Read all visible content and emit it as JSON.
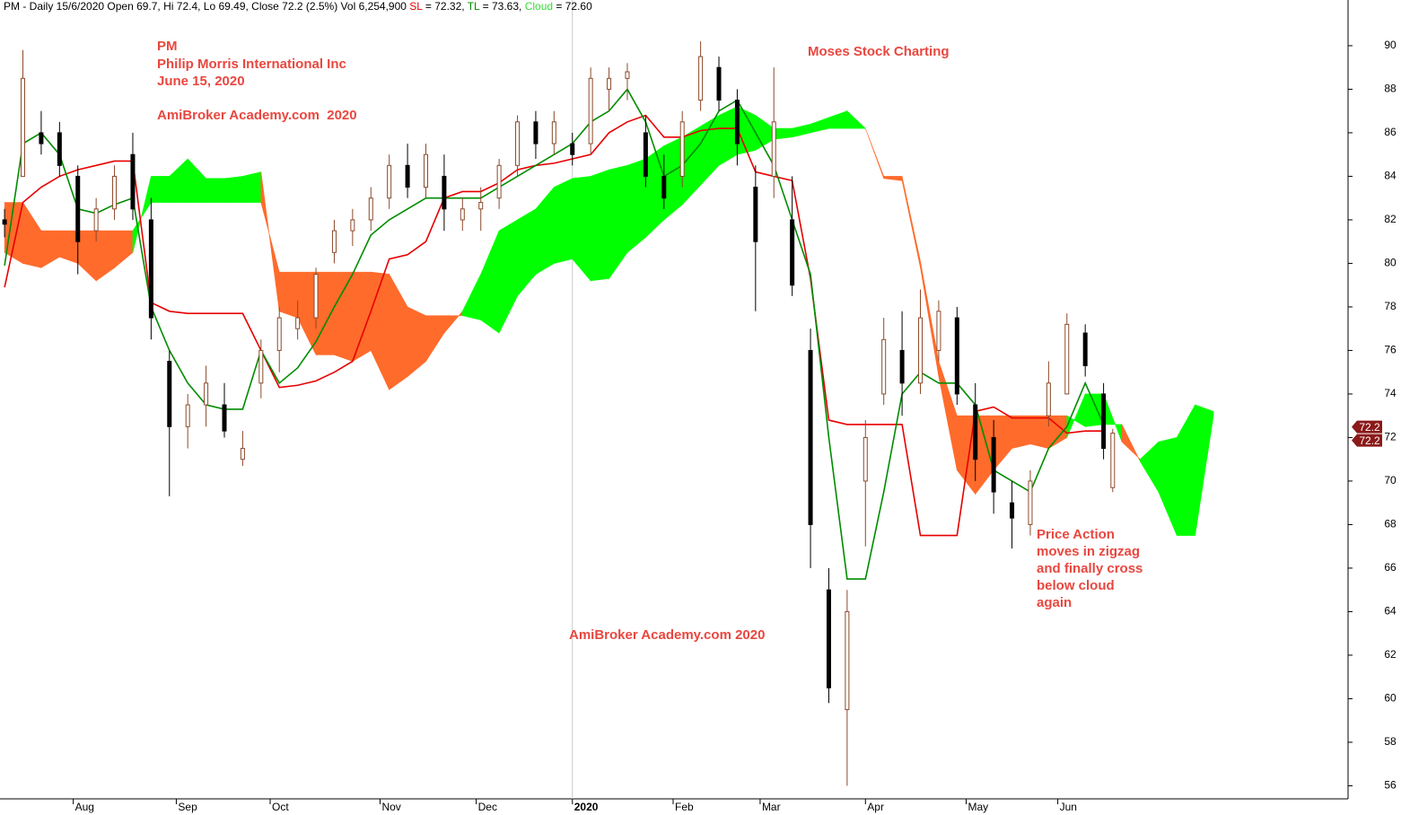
{
  "chart_data": {
    "type": "candlestick",
    "title": "PM - Daily 15/6/2020 Open 69.7, Hi 72.4, Lo 69.49, Close 72.2 (2.5%) Vol 6,254,900",
    "xlim": [
      -1,
      293
    ],
    "ylim": [
      55.4,
      92.1
    ],
    "yticks": [
      56,
      58,
      60,
      62,
      64,
      66,
      68,
      70,
      72,
      74,
      76,
      78,
      80,
      82,
      84,
      86,
      88,
      90
    ],
    "xticks": [
      {
        "value": 15,
        "label": "Aug"
      },
      {
        "value": 37.5,
        "label": "Sep"
      },
      {
        "value": 58,
        "label": "Oct"
      },
      {
        "value": 82,
        "label": "Nov"
      },
      {
        "value": 103,
        "label": "Dec"
      },
      {
        "value": 124,
        "label": "2020",
        "major": true
      },
      {
        "value": 146,
        "label": "Feb"
      },
      {
        "value": 165,
        "label": "Mar"
      },
      {
        "value": 188,
        "label": "Apr"
      },
      {
        "value": 210,
        "label": "May"
      },
      {
        "value": 230,
        "label": "Jun"
      }
    ],
    "candles": {
      "up_color": "#ffffff",
      "up_edge": "#8b4a2b",
      "down_color": "#000000",
      "x": [
        0,
        4,
        8,
        12,
        16,
        20,
        24,
        28,
        32,
        36,
        40,
        44,
        48,
        52,
        56,
        60,
        64,
        68,
        72,
        76,
        80,
        84,
        88,
        92,
        96,
        100,
        104,
        108,
        112,
        116,
        120,
        124,
        128,
        132,
        136,
        140,
        144,
        148,
        152,
        156,
        160,
        164,
        168,
        172,
        176,
        180,
        184,
        188,
        192,
        196,
        200,
        204,
        208,
        212,
        216,
        220,
        224,
        228,
        232,
        236,
        240,
        242
      ],
      "open": [
        82,
        84,
        86,
        86,
        84,
        81.5,
        82.5,
        85,
        82,
        75.5,
        72.5,
        73.5,
        73.5,
        71,
        74.5,
        76,
        77,
        77.5,
        80.5,
        81.5,
        82,
        83,
        84.5,
        83.5,
        84,
        82,
        82.5,
        83,
        84.5,
        86.5,
        85.5,
        85.5,
        85.5,
        88,
        88.5,
        86,
        84,
        84,
        87.5,
        89,
        87.5,
        83.5,
        84,
        82,
        76,
        65,
        59.5,
        70,
        74,
        76,
        74.5,
        76,
        77.5,
        73.5,
        72,
        69,
        68,
        73,
        74,
        76.8,
        74,
        69.7
      ],
      "high": [
        82.5,
        89.8,
        87,
        86.5,
        84.5,
        83,
        84.5,
        86,
        83,
        76,
        74,
        75.3,
        74.5,
        72.3,
        76.5,
        78,
        78.3,
        79.8,
        82,
        82.5,
        83.5,
        85,
        85.5,
        85.5,
        85,
        83,
        83.5,
        84.8,
        86.8,
        87,
        87,
        86,
        89,
        89,
        89.2,
        86.8,
        85,
        87,
        90.2,
        89.5,
        88,
        84.5,
        89,
        84,
        77,
        66,
        65,
        72.8,
        77.5,
        77.8,
        78.8,
        78.3,
        78,
        74.5,
        72.8,
        70,
        70.5,
        75.5,
        77.7,
        77.2,
        74.5,
        72.4
      ],
      "low": [
        81.2,
        84,
        85,
        84,
        79.5,
        81,
        82,
        82,
        76.5,
        69.3,
        71.5,
        72.5,
        72,
        70.7,
        73.8,
        75,
        76.5,
        77,
        80,
        80.8,
        81.5,
        82.5,
        83,
        83,
        81.5,
        81.5,
        81.5,
        82.5,
        84,
        84.8,
        85,
        84.5,
        85,
        87,
        87.5,
        83.5,
        82.5,
        83.5,
        87,
        87,
        84.5,
        77.8,
        83,
        78.5,
        66,
        59.8,
        56,
        67,
        73.5,
        73,
        74,
        75.5,
        73.5,
        70,
        68.5,
        66.9,
        67.5,
        72.5,
        74,
        74.8,
        71,
        69.49
      ],
      "close": [
        81.8,
        88.5,
        85.5,
        84.5,
        81,
        82.5,
        84,
        82.5,
        77.5,
        72.5,
        73.5,
        74.5,
        72.3,
        71.5,
        76,
        77.5,
        77.5,
        79.5,
        81.5,
        82,
        83,
        84.5,
        83.5,
        85,
        82.5,
        82.5,
        82.8,
        84.5,
        86.5,
        85.5,
        86.5,
        85,
        88.5,
        88.5,
        88.8,
        84,
        83,
        86.5,
        89.5,
        87.5,
        85.5,
        81,
        86.5,
        79,
        68,
        60.5,
        64,
        72,
        76.5,
        74.5,
        77.5,
        77.8,
        74,
        71,
        69.5,
        68.3,
        70,
        74.5,
        77.2,
        75.3,
        71.5,
        72.2
      ]
    },
    "lines": [
      {
        "name": "SL",
        "label": "= 72.32,",
        "color": "#e60000",
        "x": [
          0,
          4,
          8,
          12,
          16,
          20,
          24,
          28,
          32,
          36,
          40,
          44,
          48,
          52,
          56,
          60,
          64,
          68,
          72,
          76,
          80,
          84,
          88,
          92,
          96,
          100,
          104,
          108,
          112,
          116,
          120,
          124,
          128,
          132,
          136,
          140,
          144,
          148,
          152,
          156,
          160,
          164,
          168,
          172,
          176,
          180,
          184,
          188,
          192,
          196,
          200,
          204,
          208,
          212,
          216,
          220,
          224,
          228,
          232,
          236,
          240
        ],
        "values": [
          78.9,
          82.8,
          83.5,
          84,
          84.3,
          84.5,
          84.7,
          84.7,
          78.2,
          77.8,
          77.7,
          77.7,
          77.7,
          77.7,
          76,
          74.3,
          74.4,
          74.6,
          75,
          75.5,
          77.8,
          80.2,
          80.4,
          81,
          83,
          83.3,
          83.3,
          83.7,
          84.3,
          84.5,
          84.6,
          84.8,
          85,
          86,
          86.5,
          86.8,
          85.8,
          85.8,
          86.1,
          86.2,
          86.2,
          84.2,
          84,
          83.8,
          79.3,
          72.8,
          72.6,
          72.6,
          72.6,
          72.6,
          67.5,
          67.5,
          67.5,
          73.2,
          73.4,
          72.9,
          72.9,
          72.9,
          72.2,
          72.3,
          72.3
        ]
      },
      {
        "name": "TL",
        "label": "= 73.63,",
        "color": "#008c00",
        "x": [
          0,
          4,
          8,
          12,
          16,
          20,
          24,
          28,
          32,
          36,
          40,
          44,
          48,
          52,
          56,
          60,
          64,
          68,
          72,
          76,
          80,
          84,
          88,
          92,
          96,
          100,
          104,
          108,
          112,
          116,
          120,
          124,
          128,
          132,
          136,
          140,
          144,
          148,
          152,
          156,
          160,
          164,
          168,
          172,
          176,
          180,
          184,
          188,
          192,
          196,
          200,
          204,
          208,
          212,
          216,
          220,
          224,
          228,
          232,
          236,
          240
        ],
        "values": [
          79.9,
          85.5,
          86,
          85,
          82.5,
          82.3,
          82.7,
          83,
          78,
          76,
          74.5,
          73.5,
          73.3,
          73.3,
          76,
          74.5,
          75.2,
          76.4,
          78,
          79.5,
          81.3,
          82,
          82.5,
          83,
          83,
          83,
          83,
          83.5,
          84,
          84.5,
          85,
          85.5,
          86.5,
          87,
          88,
          86.5,
          84,
          84.5,
          85.5,
          87,
          87.5,
          86,
          84.5,
          82,
          79.5,
          72,
          65.5,
          65.5,
          69.5,
          74,
          75,
          74.5,
          74.5,
          73.5,
          70.5,
          70,
          69.5,
          71.5,
          72.5,
          74.5,
          72.6
        ]
      }
    ],
    "cloud": {
      "name": "Cloud",
      "label": "= 72.60",
      "name_color": "#33dd33",
      "up_color": "#00ff00",
      "down_color": "#ff6b2b",
      "x": [
        0,
        4,
        8,
        12,
        16,
        20,
        24,
        28,
        32,
        36,
        40,
        44,
        48,
        52,
        56,
        60,
        64,
        68,
        72,
        76,
        80,
        84,
        88,
        92,
        96,
        100,
        104,
        108,
        112,
        116,
        120,
        124,
        128,
        132,
        136,
        140,
        144,
        148,
        152,
        156,
        160,
        164,
        168,
        172,
        176,
        180,
        184,
        188,
        192,
        196,
        200,
        204,
        208,
        212,
        216,
        220,
        224,
        228,
        232,
        236,
        240,
        244,
        248,
        252,
        256,
        260,
        264
      ],
      "span_a": [
        80.5,
        80,
        79.8,
        80.3,
        80,
        79.2,
        79.8,
        80.5,
        84,
        84,
        84.8,
        83.9,
        83.9,
        84,
        84.2,
        77.8,
        77.5,
        75.8,
        75.8,
        75.5,
        76,
        74.2,
        74.8,
        75.5,
        76.8,
        77.8,
        79.5,
        81.5,
        82,
        82.5,
        83.5,
        83.9,
        84,
        84.3,
        84.5,
        84.8,
        85.4,
        85.8,
        86.3,
        86.8,
        87.2,
        86.8,
        86.2,
        86.2,
        86.4,
        86.7,
        87,
        86.2,
        83.9,
        83.8,
        79.8,
        74.8,
        70.5,
        69.4,
        70.5,
        71.5,
        71.7,
        71.5,
        72,
        74,
        74,
        71.8,
        71,
        71.8,
        72,
        73.5,
        73.2
      ],
      "span_b": [
        82.8,
        82.8,
        81.5,
        81.5,
        81.5,
        81.5,
        81.5,
        81.5,
        82.8,
        82.8,
        82.8,
        82.8,
        82.8,
        82.8,
        82.8,
        79.6,
        79.6,
        79.6,
        79.6,
        79.6,
        79.6,
        79.5,
        78,
        77.6,
        77.6,
        77.6,
        77.4,
        76.8,
        78.5,
        79.5,
        80,
        80.2,
        79.2,
        79.3,
        80.5,
        81.2,
        82,
        82.7,
        83.6,
        84.5,
        85,
        85.2,
        85.7,
        85.8,
        86,
        86.2,
        86.2,
        86.2,
        84,
        84,
        80.1,
        75.5,
        73,
        73,
        73,
        73,
        73,
        73,
        73,
        72.5,
        72.6,
        72.6,
        70.9,
        69.5,
        67.5,
        67.5,
        73
      ]
    },
    "last_labels": [
      72.2,
      72.2
    ],
    "label_color": "#8b1a1a",
    "annotation_color": "#e8473f",
    "annotations": [
      "PM",
      "Philip Morris International Inc",
      "June 15, 2020",
      "AmiBroker Academy.com  2020",
      "Moses Stock Charting",
      "AmiBroker Academy.com 2020",
      "Price Action",
      "moves in zigzag",
      "and finally cross",
      "below cloud",
      "again"
    ]
  }
}
